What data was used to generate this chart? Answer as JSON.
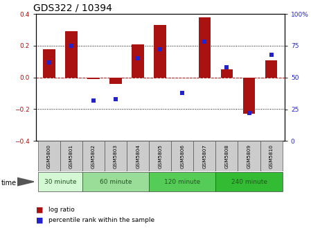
{
  "title": "GDS322 / 10394",
  "samples": [
    "GSM5800",
    "GSM5801",
    "GSM5802",
    "GSM5803",
    "GSM5804",
    "GSM5805",
    "GSM5806",
    "GSM5807",
    "GSM5808",
    "GSM5809",
    "GSM5810"
  ],
  "log_ratio": [
    0.18,
    0.29,
    -0.01,
    -0.04,
    0.21,
    0.33,
    0.0,
    0.38,
    0.05,
    -0.23,
    0.11
  ],
  "percentile": [
    62,
    75,
    32,
    33,
    65,
    72,
    38,
    78,
    58,
    22,
    68
  ],
  "ylim_left": [
    -0.4,
    0.4
  ],
  "ylim_right": [
    0,
    100
  ],
  "yticks_left": [
    -0.4,
    -0.2,
    0.0,
    0.2,
    0.4
  ],
  "yticks_right": [
    0,
    25,
    50,
    75,
    100
  ],
  "dotted_lines": [
    -0.2,
    0.0,
    0.2
  ],
  "bar_color": "#aa1111",
  "dot_color": "#2222cc",
  "groups": [
    {
      "label": "30 minute",
      "start": 0,
      "end": 2,
      "color": "#d4f7d4"
    },
    {
      "label": "60 minute",
      "start": 2,
      "end": 5,
      "color": "#99dd99"
    },
    {
      "label": "120 minute",
      "start": 5,
      "end": 8,
      "color": "#55cc55"
    },
    {
      "label": "240 minute",
      "start": 8,
      "end": 11,
      "color": "#33bb33"
    }
  ],
  "time_label": "time",
  "legend_logratio": "log ratio",
  "legend_percentile": "percentile rank within the sample",
  "title_fontsize": 10,
  "tick_fontsize": 6.5,
  "bar_width": 0.55
}
